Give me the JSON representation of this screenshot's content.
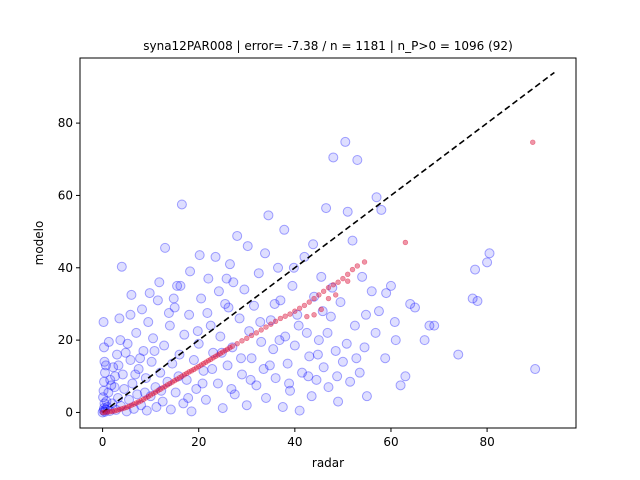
{
  "chart_data": {
    "type": "scatter",
    "title": "syna12PAR008 | error= -7.38 / n = 1181 | n_P>0 = 1096 (92)",
    "xlabel": "radar",
    "ylabel": "modelo",
    "xlim": [
      -4.7,
      98.5
    ],
    "ylim": [
      -4.3,
      98.0
    ],
    "xticks": [
      0,
      20,
      40,
      60,
      80
    ],
    "yticks": [
      0,
      20,
      40,
      60,
      80
    ],
    "grid": false,
    "legend": "none",
    "colors": {
      "observed_points": "#0000ff",
      "quantile_points": "#dc143c",
      "reference_line": "#000000"
    },
    "reference_line": {
      "x": [
        0,
        94
      ],
      "y": [
        0,
        94
      ],
      "style": "dashed"
    },
    "observed_points": [
      [
        0,
        0
      ],
      [
        0.2,
        0.5
      ],
      [
        0.3,
        1.2
      ],
      [
        0.5,
        0.2
      ],
      [
        0.4,
        2.5
      ],
      [
        0.1,
        4.2
      ],
      [
        0.2,
        6.0
      ],
      [
        0.3,
        8.5
      ],
      [
        0.5,
        11.0
      ],
      [
        0.4,
        14.0
      ],
      [
        0.3,
        18.0
      ],
      [
        0.2,
        25.0
      ],
      [
        0.6,
        0.8
      ],
      [
        0.8,
        3.1
      ],
      [
        1.0,
        1.5
      ],
      [
        1.2,
        5.5
      ],
      [
        1.5,
        0.4
      ],
      [
        1.6,
        9.0
      ],
      [
        2.0,
        2.5
      ],
      [
        2.2,
        12.5
      ],
      [
        2.5,
        7.0
      ],
      [
        2.8,
        0.7
      ],
      [
        3.0,
        16.0
      ],
      [
        3.2,
        4.0
      ],
      [
        3.5,
        26.0
      ],
      [
        3.8,
        1.8
      ],
      [
        4.0,
        40.3
      ],
      [
        4.2,
        10.5
      ],
      [
        4.5,
        6.5
      ],
      [
        5.0,
        0.3
      ],
      [
        5.2,
        19.0
      ],
      [
        5.5,
        3.5
      ],
      [
        5.8,
        14.5
      ],
      [
        6.0,
        32.5
      ],
      [
        6.2,
        8.0
      ],
      [
        6.5,
        1.0
      ],
      [
        7.0,
        22.0
      ],
      [
        7.2,
        5.0
      ],
      [
        7.5,
        12.0
      ],
      [
        8.0,
        2.0
      ],
      [
        8.2,
        28.5
      ],
      [
        8.5,
        17.0
      ],
      [
        9.0,
        9.5
      ],
      [
        9.2,
        0.5
      ],
      [
        9.5,
        25.0
      ],
      [
        10.0,
        4.5
      ],
      [
        10.2,
        14.0
      ],
      [
        10.5,
        20.5
      ],
      [
        11.0,
        7.0
      ],
      [
        11.2,
        1.5
      ],
      [
        11.5,
        31.0
      ],
      [
        12.0,
        11.0
      ],
      [
        12.5,
        3.0
      ],
      [
        12.8,
        18.5
      ],
      [
        13.0,
        45.5
      ],
      [
        13.5,
        8.5
      ],
      [
        14.0,
        24.0
      ],
      [
        14.2,
        0.8
      ],
      [
        14.5,
        13.5
      ],
      [
        15.0,
        29.0
      ],
      [
        15.2,
        5.5
      ],
      [
        15.5,
        35.0
      ],
      [
        16.0,
        16.0
      ],
      [
        16.5,
        57.5
      ],
      [
        16.8,
        2.5
      ],
      [
        17.0,
        21.5
      ],
      [
        17.5,
        9.0
      ],
      [
        18.0,
        27.0
      ],
      [
        18.5,
        0.3
      ],
      [
        19.0,
        14.5
      ],
      [
        19.5,
        6.5
      ],
      [
        20.0,
        19.0
      ],
      [
        20.5,
        31.5
      ],
      [
        21.0,
        11.5
      ],
      [
        21.5,
        3.5
      ],
      [
        22.0,
        37.0
      ],
      [
        22.5,
        24.0
      ],
      [
        23.0,
        16.5
      ],
      [
        23.5,
        43.0
      ],
      [
        24.0,
        8.0
      ],
      [
        24.5,
        21.0
      ],
      [
        25.0,
        1.2
      ],
      [
        25.5,
        30.0
      ],
      [
        26.0,
        13.0
      ],
      [
        26.5,
        41.0
      ],
      [
        27.0,
        18.0
      ],
      [
        27.5,
        5.0
      ],
      [
        28.0,
        48.8
      ],
      [
        28.5,
        26.0
      ],
      [
        29.0,
        10.5
      ],
      [
        29.5,
        34.0
      ],
      [
        30.0,
        2.0
      ],
      [
        30.5,
        22.5
      ],
      [
        31.0,
        15.0
      ],
      [
        31.5,
        29.5
      ],
      [
        32.0,
        7.5
      ],
      [
        32.5,
        38.5
      ],
      [
        33.0,
        19.5
      ],
      [
        33.5,
        12.0
      ],
      [
        34.0,
        4.0
      ],
      [
        34.5,
        54.5
      ],
      [
        35.0,
        25.5
      ],
      [
        35.5,
        17.5
      ],
      [
        36.0,
        9.5
      ],
      [
        36.5,
        40.0
      ],
      [
        37.0,
        31.0
      ],
      [
        37.5,
        1.5
      ],
      [
        38.0,
        21.0
      ],
      [
        38.5,
        13.5
      ],
      [
        39.0,
        6.0
      ],
      [
        39.5,
        35.0
      ],
      [
        40.0,
        18.5
      ],
      [
        40.5,
        27.0
      ],
      [
        41.0,
        0.5
      ],
      [
        41.5,
        11.0
      ],
      [
        42.0,
        43.0
      ],
      [
        42.5,
        22.0
      ],
      [
        43.0,
        15.5
      ],
      [
        43.5,
        4.5
      ],
      [
        44.0,
        32.0
      ],
      [
        44.5,
        9.0
      ],
      [
        45.0,
        20.0
      ],
      [
        45.5,
        37.5
      ],
      [
        46.0,
        12.5
      ],
      [
        46.5,
        56.5
      ],
      [
        47.0,
        7.0
      ],
      [
        47.5,
        26.5
      ],
      [
        48.0,
        70.5
      ],
      [
        48.5,
        17.0
      ],
      [
        49.0,
        3.0
      ],
      [
        49.5,
        30.5
      ],
      [
        50.0,
        14.0
      ],
      [
        50.5,
        74.8
      ],
      [
        51.0,
        55.5
      ],
      [
        51.5,
        8.5
      ],
      [
        52.0,
        47.5
      ],
      [
        52.5,
        24.0
      ],
      [
        53.0,
        69.8
      ],
      [
        53.5,
        11.0
      ],
      [
        54.0,
        37.5
      ],
      [
        54.5,
        18.0
      ],
      [
        55.0,
        4.5
      ],
      [
        56.0,
        33.5
      ],
      [
        57.0,
        59.5
      ],
      [
        57.5,
        28.0
      ],
      [
        58.0,
        56.0
      ],
      [
        59.0,
        33.0
      ],
      [
        60.0,
        35.0
      ],
      [
        61.0,
        20.0
      ],
      [
        62.0,
        7.5
      ],
      [
        63.0,
        10.0
      ],
      [
        64.0,
        30.0
      ],
      [
        65.0,
        29.0
      ],
      [
        67.0,
        20.0
      ],
      [
        68.0,
        24.0
      ],
      [
        69.0,
        24.0
      ],
      [
        74.0,
        16.0
      ],
      [
        77.0,
        31.5
      ],
      [
        77.5,
        39.5
      ],
      [
        78.0,
        30.8
      ],
      [
        80.0,
        41.5
      ],
      [
        80.5,
        44.0
      ],
      [
        90.0,
        12.0
      ],
      [
        0.7,
        13.0
      ],
      [
        1.3,
        19.5
      ],
      [
        1.8,
        7.5
      ],
      [
        2.6,
        10.0
      ],
      [
        3.3,
        13.0
      ],
      [
        3.7,
        20.0
      ],
      [
        4.8,
        16.5
      ],
      [
        6.8,
        10.5
      ],
      [
        7.8,
        15.0
      ],
      [
        8.8,
        5.5
      ],
      [
        10.8,
        17.0
      ],
      [
        12.2,
        6.0
      ],
      [
        13.8,
        27.5
      ],
      [
        15.8,
        10.0
      ],
      [
        17.8,
        4.0
      ],
      [
        19.8,
        22.5
      ],
      [
        20.8,
        8.0
      ],
      [
        22.8,
        12.0
      ],
      [
        24.8,
        16.5
      ],
      [
        26.8,
        6.5
      ],
      [
        28.8,
        15.0
      ],
      [
        30.8,
        9.0
      ],
      [
        32.8,
        25.0
      ],
      [
        34.8,
        13.0
      ],
      [
        36.8,
        20.0
      ],
      [
        38.8,
        8.0
      ],
      [
        40.8,
        24.0
      ],
      [
        42.8,
        10.0
      ],
      [
        44.8,
        16.0
      ],
      [
        46.8,
        22.0
      ],
      [
        48.8,
        10.0
      ],
      [
        50.8,
        19.0
      ],
      [
        52.8,
        15.0
      ],
      [
        54.8,
        27.0
      ],
      [
        56.8,
        22.0
      ],
      [
        58.8,
        15.0
      ],
      [
        60.8,
        25.0
      ],
      [
        18.2,
        39.0
      ],
      [
        24.2,
        33.5
      ],
      [
        26.2,
        29.0
      ],
      [
        30.2,
        46.0
      ],
      [
        33.8,
        44.0
      ],
      [
        37.8,
        50.5
      ],
      [
        43.8,
        46.5
      ],
      [
        27.2,
        36.0
      ],
      [
        21.8,
        27.5
      ],
      [
        14.8,
        31.5
      ],
      [
        9.8,
        33.0
      ],
      [
        5.8,
        27.0
      ],
      [
        11.8,
        36.0
      ],
      [
        16.2,
        35.0
      ],
      [
        20.2,
        43.5
      ],
      [
        25.8,
        37.0
      ],
      [
        35.8,
        30.0
      ],
      [
        39.8,
        40.0
      ],
      [
        45.8,
        28.0
      ],
      [
        47.8,
        34.5
      ]
    ],
    "quantile_points": [
      [
        0.0,
        0.0
      ],
      [
        0.5,
        0.05
      ],
      [
        1.0,
        0.1
      ],
      [
        1.5,
        0.2
      ],
      [
        2.0,
        0.3
      ],
      [
        2.5,
        0.45
      ],
      [
        3.0,
        0.6
      ],
      [
        3.5,
        0.8
      ],
      [
        4.0,
        1.0
      ],
      [
        4.5,
        1.2
      ],
      [
        5.0,
        1.4
      ],
      [
        5.5,
        1.7
      ],
      [
        6.0,
        2.0
      ],
      [
        6.5,
        2.3
      ],
      [
        7.0,
        2.6
      ],
      [
        7.5,
        2.9
      ],
      [
        8.0,
        3.2
      ],
      [
        8.5,
        3.6
      ],
      [
        9.0,
        4.0
      ],
      [
        9.5,
        4.4
      ],
      [
        10.0,
        4.8
      ],
      [
        10.5,
        5.2
      ],
      [
        11.0,
        5.6
      ],
      [
        11.5,
        6.0
      ],
      [
        12.0,
        6.4
      ],
      [
        12.5,
        6.8
      ],
      [
        13.0,
        7.2
      ],
      [
        13.5,
        7.6
      ],
      [
        14.0,
        8.0
      ],
      [
        14.5,
        8.4
      ],
      [
        15.0,
        8.8
      ],
      [
        15.5,
        9.2
      ],
      [
        16.0,
        9.6
      ],
      [
        16.5,
        10.0
      ],
      [
        17.0,
        10.4
      ],
      [
        17.5,
        10.8
      ],
      [
        18.0,
        11.2
      ],
      [
        18.5,
        11.5
      ],
      [
        19.0,
        11.9
      ],
      [
        19.5,
        12.3
      ],
      [
        20.0,
        12.7
      ],
      [
        20.5,
        13.1
      ],
      [
        21.0,
        13.5
      ],
      [
        21.5,
        13.9
      ],
      [
        22.0,
        14.3
      ],
      [
        22.5,
        14.7
      ],
      [
        23.0,
        15.1
      ],
      [
        23.5,
        15.5
      ],
      [
        24.0,
        15.9
      ],
      [
        24.5,
        16.3
      ],
      [
        25.0,
        16.7
      ],
      [
        25.5,
        17.1
      ],
      [
        26.0,
        17.5
      ],
      [
        26.5,
        17.9
      ],
      [
        27.0,
        18.3
      ],
      [
        28.0,
        19.0
      ],
      [
        29.0,
        19.8
      ],
      [
        30.0,
        20.5
      ],
      [
        31.0,
        21.3
      ],
      [
        32.0,
        22.0
      ],
      [
        33.0,
        22.8
      ],
      [
        34.0,
        23.6
      ],
      [
        35.0,
        24.4
      ],
      [
        36.0,
        25.2
      ],
      [
        37.0,
        26.0
      ],
      [
        38.0,
        26.6
      ],
      [
        39.0,
        27.2
      ],
      [
        40.0,
        28.0
      ],
      [
        41.0,
        28.8
      ],
      [
        42.0,
        29.6
      ],
      [
        43.0,
        30.5
      ],
      [
        44.0,
        31.5
      ],
      [
        45.0,
        32.5
      ],
      [
        46.0,
        33.5
      ],
      [
        47.0,
        34.5
      ],
      [
        48.0,
        35.3
      ],
      [
        49.0,
        36.0
      ],
      [
        50.0,
        37.0
      ],
      [
        51.0,
        38.2
      ],
      [
        52.0,
        39.5
      ],
      [
        53.0,
        40.5
      ],
      [
        54.5,
        41.6
      ],
      [
        63.0,
        47.0
      ],
      [
        89.5,
        74.7
      ],
      [
        45.5,
        28.5
      ],
      [
        47.0,
        31.5
      ],
      [
        48.5,
        32.5
      ],
      [
        51.0,
        36.3
      ],
      [
        42.5,
        26.5
      ],
      [
        44.0,
        27.0
      ]
    ]
  }
}
